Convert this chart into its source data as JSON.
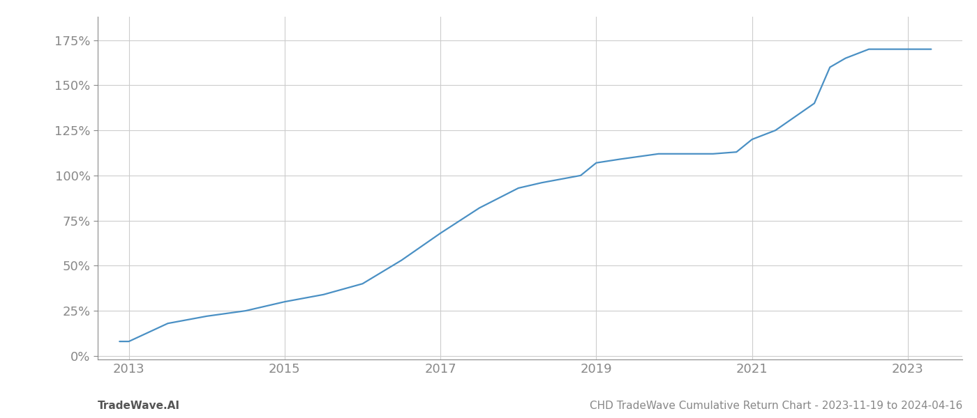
{
  "title": "CHD TradeWave Cumulative Return Chart - 2023-11-19 to 2024-04-16",
  "watermark": "TradeWave.AI",
  "line_color": "#4a90c4",
  "background_color": "#ffffff",
  "grid_color": "#cccccc",
  "x_years": [
    2012.88,
    2013.0,
    2013.5,
    2014.0,
    2014.5,
    2015.0,
    2015.5,
    2016.0,
    2016.5,
    2017.0,
    2017.5,
    2018.0,
    2018.3,
    2018.8,
    2019.0,
    2019.3,
    2019.8,
    2020.0,
    2020.3,
    2020.5,
    2020.8,
    2021.0,
    2021.3,
    2021.5,
    2021.8,
    2022.0,
    2022.2,
    2022.5,
    2023.0,
    2023.3
  ],
  "y_values": [
    8,
    8,
    18,
    22,
    25,
    30,
    34,
    40,
    53,
    68,
    82,
    93,
    96,
    100,
    107,
    109,
    112,
    112,
    112,
    112,
    113,
    120,
    125,
    131,
    140,
    160,
    165,
    170,
    170,
    170
  ],
  "xlim": [
    2012.6,
    2023.7
  ],
  "ylim": [
    -2,
    188
  ],
  "yticks": [
    0,
    25,
    50,
    75,
    100,
    125,
    150,
    175
  ],
  "ytick_labels": [
    "0%",
    "25%",
    "50%",
    "75%",
    "100%",
    "125%",
    "150%",
    "175%"
  ],
  "xticks": [
    2013,
    2015,
    2017,
    2019,
    2021,
    2023
  ],
  "xtick_labels": [
    "2013",
    "2015",
    "2017",
    "2019",
    "2021",
    "2023"
  ],
  "line_width": 1.6,
  "tick_color": "#888888",
  "label_color": "#888888",
  "title_color": "#888888",
  "watermark_color": "#555555",
  "spine_color": "#888888",
  "font_size_ticks": 13,
  "font_size_footer": 11
}
